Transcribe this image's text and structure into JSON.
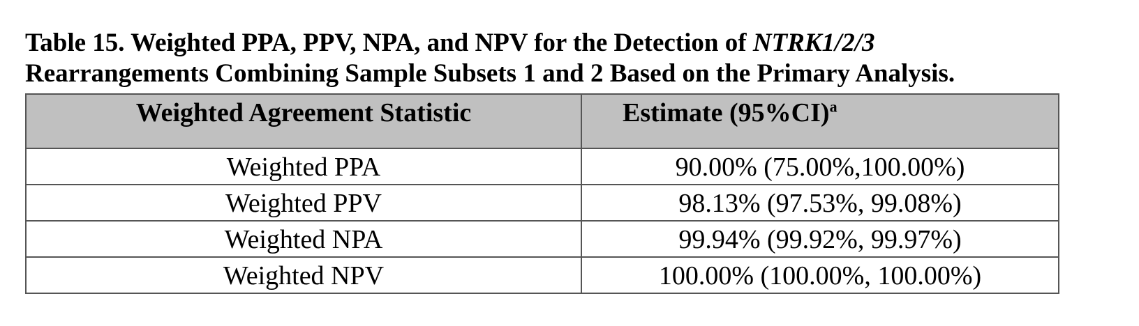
{
  "caption": {
    "label_prefix": "Table 15. Weighted PPA, PPV, NPA, and NPV for the Detection of ",
    "gene": "NTRK1/2/3",
    "line2": "Rearrangements Combining Sample Subsets 1 and 2 Based on the Primary Analysis."
  },
  "table": {
    "headers": {
      "statistic": "Weighted Agreement Statistic",
      "estimate": "Estimate (95%CI)",
      "estimate_sup": "a"
    },
    "rows": [
      {
        "statistic": "Weighted PPA",
        "estimate": "90.00% (75.00%,100.00%)"
      },
      {
        "statistic": "Weighted PPV",
        "estimate": "98.13% (97.53%, 99.08%)"
      },
      {
        "statistic": "Weighted NPA",
        "estimate": "99.94% (99.92%, 99.97%)"
      },
      {
        "statistic": "Weighted NPV",
        "estimate": "100.00% (100.00%, 100.00%)"
      }
    ]
  },
  "colors": {
    "header_background": "#c0c0c0",
    "border": "#555555"
  }
}
